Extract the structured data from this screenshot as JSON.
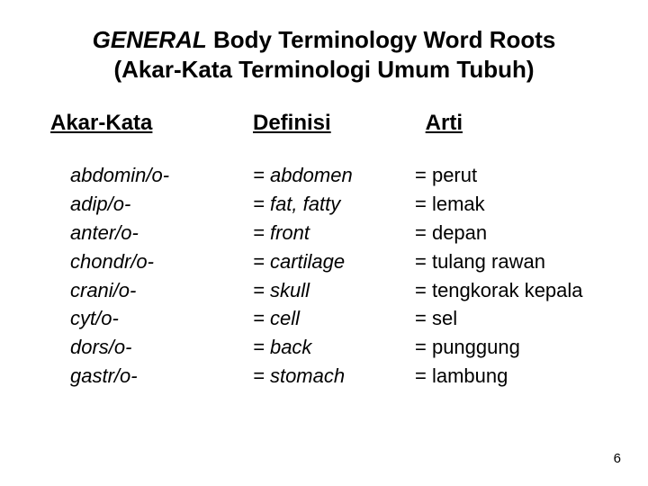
{
  "title_line1_prefix": "GENERAL",
  "title_line1_rest": " Body Terminology Word Roots",
  "title_line2": "(Akar-Kata Terminologi  Umum Tubuh)",
  "headers": {
    "col1": "Akar-Kata",
    "col2": "Definisi",
    "col3": "Arti"
  },
  "rows": [
    {
      "root": "abdomin/o-",
      "def": "= abdomen",
      "arti": "= perut"
    },
    {
      "root": "adip/o-",
      "def": "= fat, fatty",
      "arti": "= lemak"
    },
    {
      "root": "anter/o-",
      "def": "= front",
      "arti": "= depan"
    },
    {
      "root": "chondr/o-",
      "def": "= cartilage",
      "arti": "= tulang rawan"
    },
    {
      "root": "crani/o-",
      "def": "= skull",
      "arti": " = tengkorak kepala"
    },
    {
      "root": "cyt/o-",
      "def": "= cell",
      "arti": "= sel"
    },
    {
      "root": "dors/o-",
      "def": "= back",
      "arti": " = punggung"
    },
    {
      "root": "gastr/o-",
      "def": "= stomach",
      "arti": "= lambung"
    }
  ],
  "page_number": "6"
}
